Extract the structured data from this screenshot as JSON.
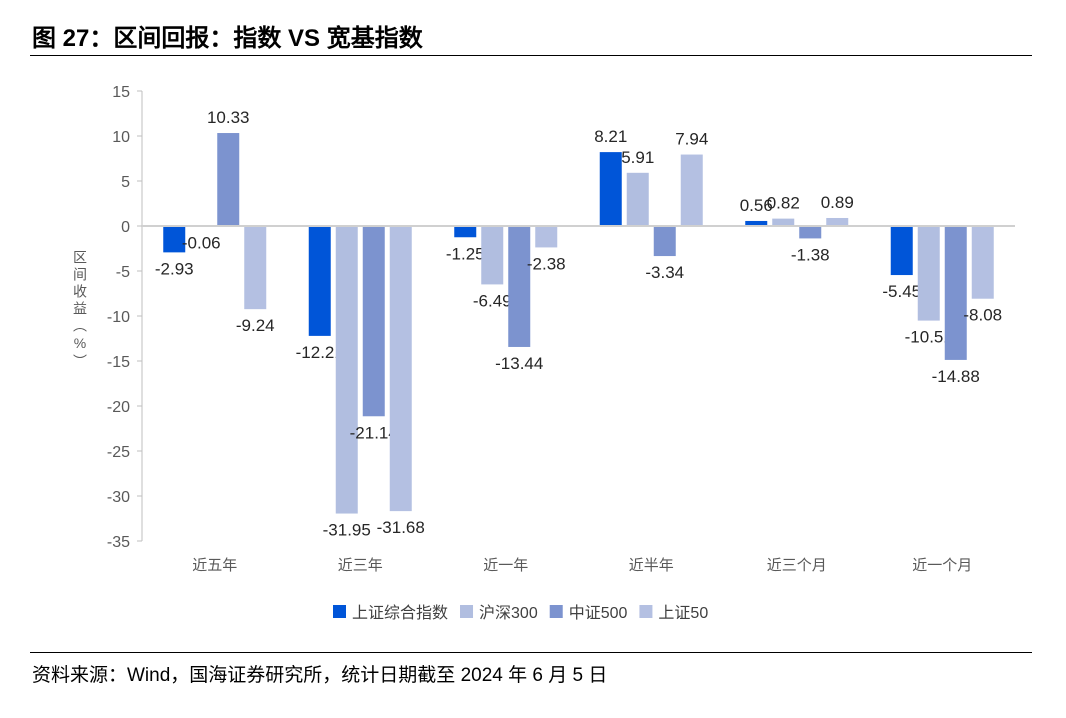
{
  "title": "图 27：区间回报：指数 VS 宽基指数",
  "source": "资料来源：Wind，国海证券研究所，统计日期截至 2024 年 6 月 5 日",
  "chart_data": {
    "type": "bar",
    "title": "",
    "xlabel": "",
    "ylabel": "区间收益（%）",
    "ylim": [
      -35,
      15
    ],
    "yticks": [
      15,
      10,
      5,
      0,
      -5,
      -10,
      -15,
      -20,
      -25,
      -30,
      -35
    ],
    "grid": false,
    "legend_position": "bottom",
    "categories": [
      "近五年",
      "近三年",
      "近一年",
      "近半年",
      "近三个月",
      "近一个月"
    ],
    "series": [
      {
        "name": "上证综合指数",
        "color": "#0055D8",
        "values": [
          -2.93,
          -12.21,
          -1.25,
          8.21,
          0.56,
          -5.45
        ]
      },
      {
        "name": "沪深300",
        "color": "#B1BEE0",
        "values": [
          -0.06,
          -31.95,
          -6.49,
          5.91,
          0.82,
          -10.51
        ]
      },
      {
        "name": "中证500",
        "color": "#7C93CF",
        "values": [
          10.33,
          -21.14,
          -13.44,
          -3.34,
          -1.38,
          -14.88
        ]
      },
      {
        "name": "上证50",
        "color": "#B4C0E2",
        "values": [
          -9.24,
          -31.68,
          -2.38,
          7.94,
          0.89,
          -8.08
        ]
      }
    ]
  }
}
